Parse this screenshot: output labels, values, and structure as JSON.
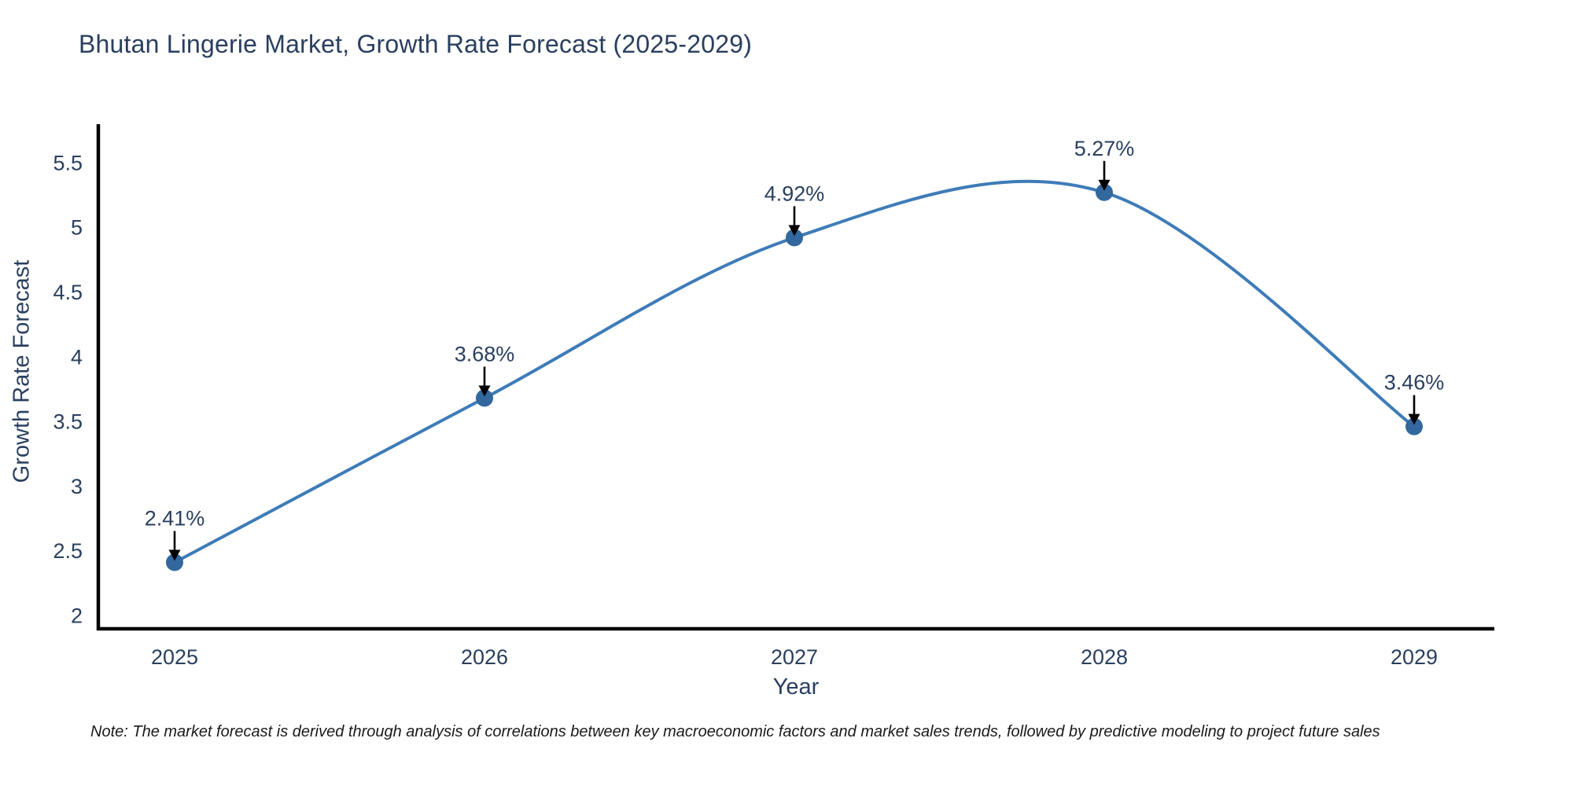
{
  "note": "Note: The market forecast is derived through analysis of correlations between key macroeconomic factors and market sales trends, followed by predictive modeling to project future sales",
  "chart_data": {
    "type": "line",
    "line_shape": "spline",
    "title": "Bhutan Lingerie Market, Growth Rate Forecast (2025-2029)",
    "xlabel": "Year",
    "ylabel": "Growth Rate Forecast",
    "x": [
      2025,
      2026,
      2027,
      2028,
      2029
    ],
    "xticks": [
      "2025",
      "2026",
      "2027",
      "2028",
      "2029"
    ],
    "series": [
      {
        "name": "Growth Rate Forecast",
        "values": [
          2.41,
          3.68,
          4.92,
          5.27,
          3.46
        ],
        "point_labels": [
          "2.41%",
          "3.68%",
          "4.92%",
          "5.27%",
          "3.46%"
        ]
      }
    ],
    "ylim": [
      2,
      5.5
    ],
    "yticks": [
      "2",
      "2.5",
      "3",
      "3.5",
      "4",
      "4.5",
      "5",
      "5.5"
    ],
    "grid": false,
    "legend_visible": false,
    "annotation_style": "black-arrow-down-to-point",
    "colors": {
      "line": "#3e7cb8",
      "marker": "#32689e",
      "axis_line": "#000000",
      "tick_text": "#2a3f5f",
      "title_text": "#2a3f5f",
      "annotation_text": "#2a3f5f",
      "annotation_arrow": "#000000",
      "note_text": "#1a1a1a",
      "background": "#ffffff"
    }
  }
}
